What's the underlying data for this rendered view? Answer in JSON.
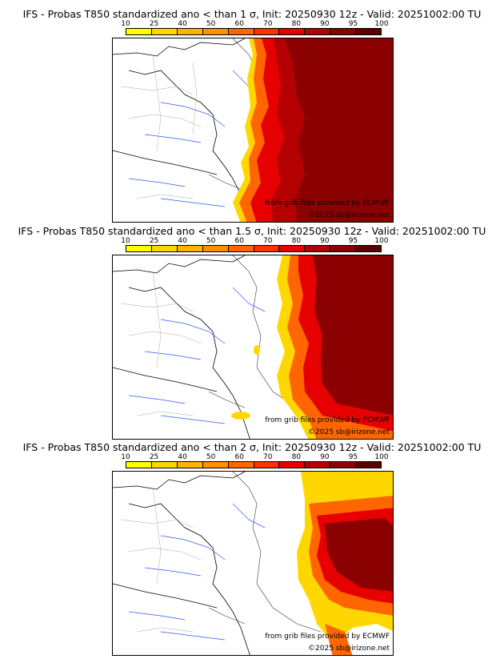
{
  "legend": {
    "ticks": [
      "10",
      "25",
      "40",
      "50",
      "60",
      "70",
      "80",
      "90",
      "95",
      "100"
    ],
    "colors": [
      "#ffff00",
      "#ffd700",
      "#ffb400",
      "#ff9000",
      "#ff6600",
      "#ff3300",
      "#e60000",
      "#b40000",
      "#8b0000",
      "#5a0000"
    ]
  },
  "panels": [
    {
      "title": "IFS - Probas T850  standardized ano < than 1 σ, Init: 20250930 12z - Valid: 20251002:00 TU",
      "credit_source": "from grib files provided by ECMWF",
      "credit_copyright": "©2025 sb@irizone.net"
    },
    {
      "title": "IFS - Probas T850  standardized ano < than 1.5 σ, Init: 20250930 12z - Valid: 20251002:00 TU",
      "credit_source": "from grib files provided by ECMWF",
      "credit_copyright": "©2025 sb@irizone.net"
    },
    {
      "title": "IFS - Probas T850  standardized ano < than 2 σ, Init: 20250930 12z - Valid: 20251002:00 TU",
      "credit_source": "from grib files provided by ECMWF",
      "credit_copyright": "©2025 sb@irizone.net"
    }
  ]
}
